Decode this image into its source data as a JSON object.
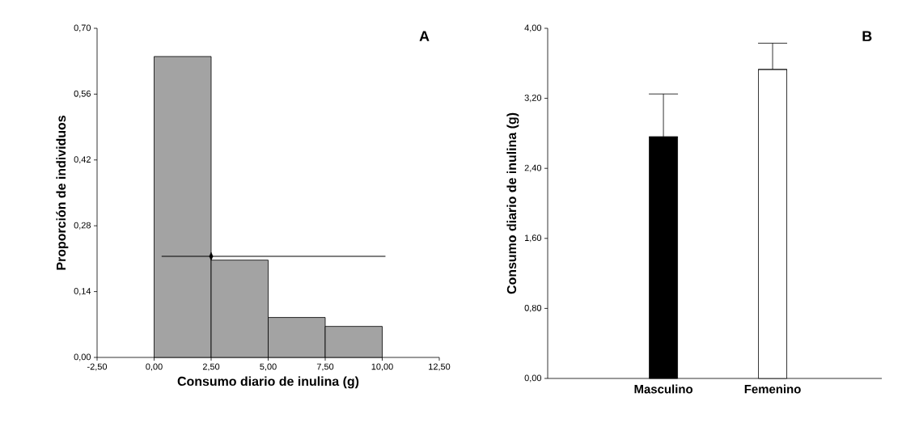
{
  "chart_data": [
    {
      "type": "histogram",
      "title": "A",
      "xlabel": "Consumo diario de inulina (g)",
      "ylabel": "Proporción de individuos",
      "bins": [
        0,
        2.5,
        5,
        7.5,
        10
      ],
      "values": [
        0.64,
        0.207,
        0.085,
        0.066
      ],
      "color": "#a3a3a3",
      "series": [
        {
          "type": "scatter",
          "x": [
            2.5
          ],
          "values": [
            0.215
          ],
          "xerrors": [
            [
              0.33,
              10.14
            ]
          ],
          "color": "#000000",
          "marker": "diamond"
        }
      ],
      "xlim": [
        -2.5,
        12.5
      ],
      "xticks": [
        {
          "value": -2.5,
          "label": "-2,50"
        },
        {
          "value": 0,
          "label": "0,00"
        },
        {
          "value": 2.5,
          "label": "2,50"
        },
        {
          "value": 5,
          "label": "5,00"
        },
        {
          "value": 7.5,
          "label": "7,50"
        },
        {
          "value": 10,
          "label": "10,00"
        },
        {
          "value": 12.5,
          "label": "12,50"
        }
      ],
      "ylim": [
        0,
        0.7
      ],
      "yticks": [
        {
          "value": 0,
          "label": "0,00"
        },
        {
          "value": 0.14,
          "label": "0,14"
        },
        {
          "value": 0.28,
          "label": "0,28"
        },
        {
          "value": 0.42,
          "label": "0,42"
        },
        {
          "value": 0.56,
          "label": "0,56"
        },
        {
          "value": 0.7,
          "label": "0,70"
        }
      ]
    },
    {
      "type": "bar",
      "title": "B",
      "ylabel": "Consumo diario de inulina (g)",
      "categories": [
        "Masculino",
        "Femenino"
      ],
      "values": [
        2.76,
        3.53
      ],
      "colors": [
        "#000000",
        "#ffffff"
      ],
      "errors": [
        [
          2.76,
          3.25
        ],
        [
          3.53,
          3.83
        ]
      ],
      "ylim": [
        0,
        4
      ],
      "yticks": [
        {
          "value": 0,
          "label": "0,00"
        },
        {
          "value": 0.8,
          "label": "0,80"
        },
        {
          "value": 1.6,
          "label": "1,60"
        },
        {
          "value": 2.4,
          "label": "2,40"
        },
        {
          "value": 3.2,
          "label": "3,20"
        },
        {
          "value": 4,
          "label": "4,00"
        }
      ]
    }
  ]
}
